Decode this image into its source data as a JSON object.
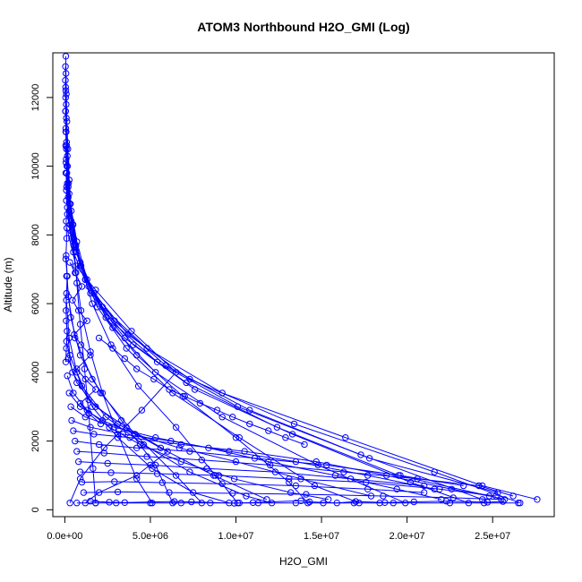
{
  "chart_data": {
    "type": "scatter",
    "title": "ATOM3 Northbound H2O_GMI (Log)",
    "xlabel": "H2O_GMI",
    "ylabel": "Altitude (m)",
    "xlim": [
      -700000,
      28600000
    ],
    "ylim": [
      -200,
      13300
    ],
    "x_ticks": [
      0,
      5000000,
      10000000,
      15000000,
      20000000,
      25000000
    ],
    "x_tick_labels": [
      "0.0e+00",
      "5.0e+06",
      "1.0e+07",
      "1.5e+07",
      "2.0e+07",
      "2.5e+07"
    ],
    "y_ticks": [
      0,
      2000,
      4000,
      6000,
      8000,
      10000,
      12000
    ],
    "y_tick_labels": [
      "0",
      "2000",
      "4000",
      "6000",
      "8000",
      "10000",
      "12000"
    ],
    "grid": false,
    "marker": "open-circle",
    "connect_points": true,
    "color": "#0000ff",
    "series": [
      {
        "x": [
          60000,
          70000,
          90000,
          120000,
          180000,
          260000,
          380000,
          520000,
          700000,
          900000,
          1150000,
          1400000,
          1650000,
          1800000
        ],
        "y": [
          13200,
          12700,
          12100,
          11300,
          10500,
          9600,
          8700,
          7700,
          6600,
          5400,
          4100,
          2800,
          1200,
          200
        ]
      },
      {
        "x": [
          40000,
          60000,
          90000,
          150000,
          250000,
          400000,
          650000,
          950000,
          1500000,
          2200000,
          3100000,
          4200000,
          5100000
        ],
        "y": [
          12900,
          12200,
          11400,
          10300,
          9200,
          8100,
          6900,
          5800,
          4600,
          3400,
          2200,
          900,
          200
        ]
      },
      {
        "x": [
          30000,
          50000,
          110000,
          220000,
          480000,
          900000,
          1600000,
          2700000,
          4300000,
          6500000,
          8800000,
          10100000
        ],
        "y": [
          12500,
          11600,
          10600,
          9500,
          8300,
          7200,
          6000,
          4800,
          3600,
          2400,
          1000,
          200
        ]
      },
      {
        "x": [
          50000,
          80000,
          160000,
          330000,
          700000,
          1300000,
          2400000,
          4200000,
          6900000,
          10000000,
          13100000,
          14200000
        ],
        "y": [
          12000,
          11000,
          10000,
          8900,
          7800,
          6700,
          5600,
          4500,
          3300,
          2100,
          800,
          200
        ]
      },
      {
        "x": [
          40000,
          90000,
          200000,
          450000,
          950000,
          1900000,
          3600000,
          6300000,
          10200000,
          14600000,
          17200000
        ],
        "y": [
          11600,
          10500,
          9400,
          8300,
          7100,
          5900,
          4700,
          3400,
          2100,
          700,
          200
        ]
      },
      {
        "x": [
          60000,
          120000,
          280000,
          650000,
          1400000,
          2800000,
          5300000,
          9200000,
          14800000,
          19900000
        ],
        "y": [
          11000,
          10000,
          8900,
          7700,
          6500,
          5300,
          4000,
          2700,
          1300,
          200
        ]
      },
      {
        "x": [
          50000,
          150000,
          380000,
          900000,
          2000000,
          4000000,
          7600000,
          13300000,
          20200000,
          23600000
        ],
        "y": [
          10600,
          9500,
          8400,
          7200,
          6000,
          4800,
          3500,
          2200,
          800,
          200
        ]
      },
      {
        "x": [
          80000,
          200000,
          520000,
          1200000,
          2700000,
          5400000,
          10100000,
          17300000,
          24400000
        ],
        "y": [
          10200,
          9100,
          7900,
          6700,
          5500,
          4300,
          3000,
          1600,
          300
        ]
      },
      {
        "x": [
          60000,
          250000,
          700000,
          1700000,
          3700000,
          7300000,
          13400000,
          21600000,
          26600000
        ],
        "y": [
          9800,
          8700,
          7500,
          6300,
          5100,
          3800,
          2500,
          1100,
          200
        ]
      },
      {
        "x": [
          100000,
          300000,
          900000,
          2200000,
          4800000,
          9200000,
          16400000,
          24400000,
          27600000
        ],
        "y": [
          9400,
          8300,
          7100,
          5900,
          4700,
          3400,
          2100,
          700,
          300
        ]
      },
      {
        "x": [
          90000,
          400000,
          1200000,
          2900000,
          5900000,
          10800000,
          17800000,
          25300000
        ],
        "y": [
          9000,
          7900,
          6700,
          5500,
          4200,
          2900,
          1500,
          500
        ]
      },
      {
        "x": [
          150000,
          500000,
          1500000,
          3500000,
          7100000,
          12400000,
          19500000,
          25700000
        ],
        "y": [
          8600,
          7500,
          6300,
          5000,
          3700,
          2400,
          1000,
          300
        ]
      },
      {
        "x": [
          120000,
          650000,
          1800000,
          3900000,
          6500000,
          4500000,
          2300000,
          900000,
          300000
        ],
        "y": [
          8200,
          7100,
          6400,
          5200,
          4000,
          2900,
          1800,
          900,
          200
        ]
      },
      {
        "x": [
          80000,
          200000,
          600000,
          1600000,
          3300000,
          5300000,
          6300000
        ],
        "y": [
          7400,
          6200,
          5000,
          3800,
          2600,
          1300,
          200
        ]
      },
      {
        "x": [
          100000,
          350000,
          900000,
          2100000,
          4100000,
          6500000,
          8000000
        ],
        "y": [
          6800,
          5600,
          4500,
          3400,
          2200,
          1000,
          200
        ]
      },
      {
        "x": [
          90000,
          250000,
          700000,
          1600000,
          3100000,
          5100000,
          7500000,
          9600000
        ],
        "y": [
          6100,
          5000,
          4000,
          3000,
          2100,
          1200,
          500,
          200
        ]
      },
      {
        "x": [
          80000,
          300000,
          1000000,
          2400000,
          4600000,
          7300000,
          10600000,
          12100000
        ],
        "y": [
          5500,
          4500,
          3600,
          2700,
          1900,
          1100,
          400,
          200
        ]
      },
      {
        "x": [
          100000,
          450000,
          1400000,
          3100000,
          5600000,
          8700000,
          11800000
        ],
        "y": [
          4900,
          4000,
          3200,
          2500,
          1800,
          1000,
          300
        ]
      },
      {
        "x": [
          200000,
          700000,
          1800000,
          3600000,
          6000000,
          4200000,
          2000000,
          1200000
        ],
        "y": [
          4400,
          3700,
          3000,
          2400,
          1700,
          1000,
          500,
          200
        ]
      },
      {
        "x": [
          150000,
          500000,
          1300000,
          2600000,
          4400000,
          6800000,
          9900000,
          13200000,
          15400000
        ],
        "y": [
          3900,
          3400,
          2900,
          2400,
          1900,
          1400,
          900,
          500,
          300
        ]
      },
      {
        "x": [
          250000,
          900000,
          2200000,
          4100000,
          6700000,
          10000000,
          13800000,
          17900000
        ],
        "y": [
          3400,
          3000,
          2600,
          2200,
          1800,
          1400,
          900,
          400
        ]
      },
      {
        "x": [
          350000,
          1200000,
          2900000,
          5300000,
          8400000,
          11900000,
          15800000,
          19400000,
          22000000
        ],
        "y": [
          3000,
          2700,
          2400,
          2100,
          1800,
          1400,
          1000,
          600,
          300
        ]
      },
      {
        "x": [
          400000,
          1500000,
          3400000,
          6200000,
          9600000,
          13500000,
          17700000,
          21600000
        ],
        "y": [
          2600,
          2400,
          2200,
          2000,
          1700,
          1400,
          1000,
          600
        ]
      },
      {
        "x": [
          500000,
          1700000,
          3800000,
          6800000,
          10500000,
          14700000,
          18800000,
          22600000,
          24800000
        ],
        "y": [
          2300,
          2200,
          2100,
          1900,
          1700,
          1400,
          1000,
          600,
          400
        ]
      },
      {
        "x": [
          600000,
          2000000,
          4200000,
          7300000,
          11100000,
          15300000,
          19600000,
          23300000
        ],
        "y": [
          2000,
          1900,
          1800,
          1700,
          1500,
          1300,
          1000,
          700
        ]
      },
      {
        "x": [
          700000,
          2300000,
          4800000,
          8000000,
          12000000,
          16300000,
          20600000,
          24200000,
          26200000
        ],
        "y": [
          1700,
          1650,
          1550,
          1450,
          1300,
          1100,
          900,
          700,
          400
        ]
      },
      {
        "x": [
          800000,
          2500000,
          5000000,
          8300000,
          12300000,
          16700000,
          21000000
        ],
        "y": [
          1400,
          1350,
          1300,
          1200,
          1100,
          900,
          700
        ]
      },
      {
        "x": [
          900000,
          2700000,
          5400000,
          9000000,
          13100000,
          17600000,
          21900000,
          25200000
        ],
        "y": [
          1100,
          1080,
          1050,
          1000,
          900,
          800,
          600,
          400
        ]
      },
      {
        "x": [
          1000000,
          2900000,
          5700000,
          9200000,
          13500000,
          17700000,
          21000000
        ],
        "y": [
          800,
          820,
          790,
          760,
          700,
          600,
          500
        ]
      },
      {
        "x": [
          1100000,
          3100000,
          6100000,
          9800000,
          14100000,
          18600000,
          22700000,
          25500000
        ],
        "y": [
          500,
          520,
          500,
          480,
          450,
          400,
          350,
          300
        ]
      },
      {
        "x": [
          700000,
          1800000,
          3000000,
          5000000,
          6800000,
          8500000,
          10200000,
          11300000,
          13500000,
          15100000,
          16900000,
          18400000,
          19200000,
          22500000,
          24500000,
          26500000
        ],
        "y": [
          200,
          200,
          200,
          200,
          200,
          200,
          200,
          200,
          200,
          200,
          200,
          200,
          200,
          200,
          200,
          200
        ]
      },
      {
        "x": [
          1500000,
          2600000,
          3500000,
          6400000,
          7400000,
          9900000,
          11000000,
          13800000,
          14300000,
          15900000,
          17000000,
          18700000,
          20400000,
          22300000,
          24700000,
          25600000
        ],
        "y": [
          250,
          220,
          210,
          240,
          230,
          190,
          210,
          260,
          230,
          200,
          240,
          210,
          230,
          250,
          220,
          240
        ]
      },
      {
        "x": [
          50000,
          80000,
          60000,
          100000,
          70000,
          120000,
          90000,
          150000,
          80000,
          110000,
          60000,
          140000,
          100000,
          70000,
          130000,
          90000,
          60000
        ],
        "y": [
          12300,
          11800,
          11100,
          10700,
          10100,
          9800,
          9300,
          8800,
          8400,
          7900,
          7300,
          6800,
          6300,
          5800,
          5200,
          4700,
          4300
        ]
      },
      {
        "x": [
          300000,
          600000,
          1000000,
          450000,
          800000,
          1300000,
          550000,
          950000,
          1500000,
          700000,
          1200000,
          1800000,
          900000,
          1400000,
          2100000
        ],
        "y": [
          7200,
          6900,
          6500,
          6100,
          5800,
          5500,
          5100,
          4800,
          4500,
          4100,
          3800,
          3500,
          3100,
          2800,
          2500
        ]
      },
      {
        "x": [
          2000000,
          2800000,
          3500000,
          4200000,
          5200000,
          6100000,
          7000000,
          7900000,
          8900000,
          9800000,
          10800000,
          11900000,
          12900000,
          14000000
        ],
        "y": [
          5000,
          4700,
          4400,
          4100,
          3800,
          3500,
          3300,
          3100,
          2900,
          2700,
          2500,
          2300,
          2100,
          1900
        ]
      }
    ]
  }
}
